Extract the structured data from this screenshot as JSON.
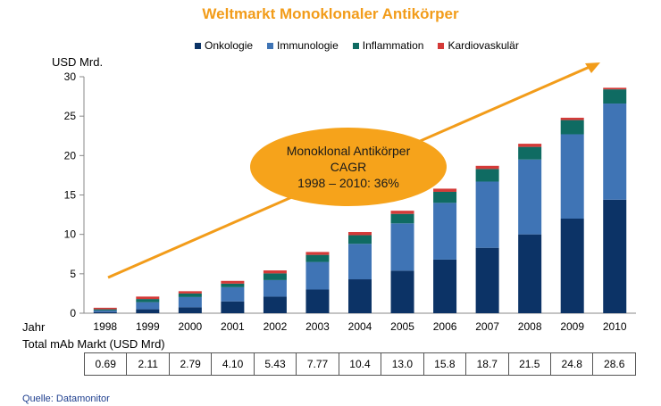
{
  "chart_data": {
    "type": "bar",
    "stacked": true,
    "title": "Weltmarkt Monoklonaler Antikörper",
    "ylabel": "USD Mrd.",
    "xlabel": "Jahr",
    "ylim": [
      0,
      30
    ],
    "yticks": [
      "0",
      "5",
      "10",
      "15",
      "20",
      "25",
      "30"
    ],
    "categories": [
      "1998",
      "1999",
      "2000",
      "2001",
      "2002",
      "2003",
      "2004",
      "2005",
      "2006",
      "2007",
      "2008",
      "2009",
      "2010"
    ],
    "series": [
      {
        "name": "Onkologie",
        "color": "#0c3366",
        "values": [
          0.15,
          0.5,
          0.75,
          1.5,
          2.1,
          3.0,
          4.3,
          5.4,
          6.8,
          8.3,
          10.0,
          12.0,
          14.4
        ]
      },
      {
        "name": "Immunologie",
        "color": "#3f74b5",
        "values": [
          0.2,
          0.9,
          1.3,
          1.8,
          2.1,
          3.5,
          4.5,
          6.0,
          7.2,
          8.4,
          9.5,
          10.7,
          12.2
        ]
      },
      {
        "name": "Inflammation",
        "color": "#0f6b62",
        "values": [
          0.15,
          0.4,
          0.45,
          0.45,
          0.85,
          0.9,
          1.1,
          1.2,
          1.4,
          1.6,
          1.6,
          1.8,
          1.8
        ]
      },
      {
        "name": "Kardiovaskulär",
        "color": "#d43a38",
        "values": [
          0.19,
          0.31,
          0.29,
          0.35,
          0.38,
          0.37,
          0.4,
          0.4,
          0.4,
          0.4,
          0.4,
          0.3,
          0.2
        ]
      }
    ],
    "grid": false,
    "legend_position": "top"
  },
  "callout": {
    "line1": "Monoklonal Antikörper",
    "line2": "CAGR",
    "line3": "1998 – 2010: 36%"
  },
  "totals": {
    "label": "Total mAb Markt (USD Mrd)",
    "values": [
      "0.69",
      "2.11",
      "2.79",
      "4.10",
      "5.43",
      "7.77",
      "10.4",
      "13.0",
      "15.8",
      "18.7",
      "21.5",
      "24.8",
      "28.6"
    ]
  },
  "source": "Quelle: Datamonitor",
  "colors": {
    "title": "#f29c1a",
    "arrow": "#f29c1a",
    "callout": "#f6a31b"
  }
}
